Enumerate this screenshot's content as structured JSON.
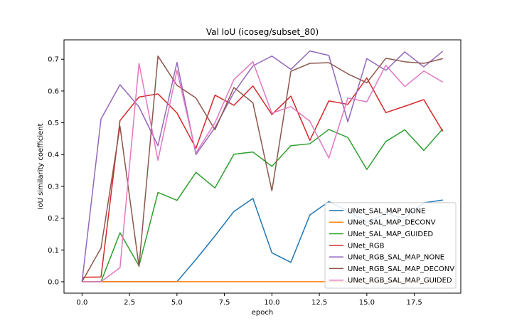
{
  "chart_data": {
    "type": "line",
    "title": "Val IoU (icoseg/subset_80)",
    "xlabel": "epoch",
    "ylabel": "IoU similarity coefficient",
    "xlim": [
      -0.95,
      19.95
    ],
    "ylim": [
      -0.036,
      0.761
    ],
    "xticks": [
      0.0,
      2.5,
      5.0,
      7.5,
      10.0,
      12.5,
      15.0,
      17.5
    ],
    "xtick_labels": [
      "0.0",
      "2.5",
      "5.0",
      "7.5",
      "10.0",
      "12.5",
      "15.0",
      "17.5"
    ],
    "yticks": [
      0.0,
      0.1,
      0.2,
      0.3,
      0.4,
      0.5,
      0.6,
      0.7
    ],
    "ytick_labels": [
      "0.0",
      "0.1",
      "0.2",
      "0.3",
      "0.4",
      "0.5",
      "0.6",
      "0.7"
    ],
    "grid": false,
    "legend_position": "lower-right",
    "x": [
      0,
      1,
      2,
      3,
      4,
      5,
      6,
      7,
      8,
      9,
      10,
      11,
      12,
      13,
      14,
      15,
      16,
      17,
      18,
      19
    ],
    "series": [
      {
        "name": "UNet_SAL_MAP_NONE",
        "color": "#1f77b4",
        "values": [
          0,
          0,
          0,
          0,
          0,
          0,
          0.07,
          0.144,
          0.221,
          0.262,
          0.091,
          0.061,
          0.21,
          0.252,
          0.222,
          0.186,
          0.214,
          0.2,
          0.248,
          0.257
        ]
      },
      {
        "name": "UNet_SAL_MAP_DECONV",
        "color": "#ff7f0e",
        "values": [
          0,
          0,
          0,
          0,
          0,
          0,
          0,
          0,
          0,
          0,
          0,
          0,
          0,
          0,
          0,
          0,
          0,
          0,
          0,
          0
        ]
      },
      {
        "name": "UNet_SAL_MAP_GUIDED",
        "color": "#2ca02c",
        "values": [
          0,
          0,
          0.154,
          0.05,
          0.281,
          0.256,
          0.344,
          0.295,
          0.401,
          0.408,
          0.363,
          0.428,
          0.434,
          0.479,
          0.454,
          0.353,
          0.441,
          0.478,
          0.413,
          0.481
        ]
      },
      {
        "name": "UNet_RGB",
        "color": "#d62728",
        "values": [
          0.014,
          0.015,
          0.507,
          0.581,
          0.591,
          0.531,
          0.42,
          0.587,
          0.555,
          0.616,
          0.526,
          0.584,
          0.445,
          0.569,
          0.558,
          0.641,
          0.532,
          0.552,
          0.573,
          0.473
        ]
      },
      {
        "name": "UNet_RGB_SAL_MAP_NONE",
        "color": "#9467bd",
        "values": [
          0,
          0.512,
          0.62,
          0.55,
          0.428,
          0.69,
          0.4,
          0.485,
          0.595,
          0.679,
          0.71,
          0.668,
          0.726,
          0.712,
          0.503,
          0.702,
          0.665,
          0.723,
          0.676,
          0.725
        ]
      },
      {
        "name": "UNet_RGB_SAL_MAP_DECONV",
        "color": "#8c564b",
        "values": [
          0,
          0.106,
          0.489,
          0.048,
          0.71,
          0.618,
          0.578,
          0.478,
          0.611,
          0.563,
          0.286,
          0.662,
          0.687,
          0.689,
          0.654,
          0.626,
          0.703,
          0.692,
          0.687,
          0.702
        ]
      },
      {
        "name": "UNet_RGB_SAL_MAP_GUIDED",
        "color": "#e377c2",
        "values": [
          0,
          0,
          0.044,
          0.687,
          0.382,
          0.665,
          0.405,
          0.5,
          0.636,
          0.692,
          0.53,
          0.551,
          0.505,
          0.389,
          0.578,
          0.566,
          0.681,
          0.614,
          0.663,
          0.628
        ]
      }
    ]
  }
}
